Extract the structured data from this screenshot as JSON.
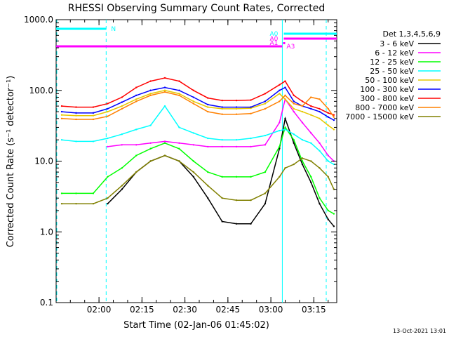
{
  "chart_data": {
    "type": "line",
    "title": "RHESSI Observing Summary Count Rates, Corrected",
    "xlabel": "Start Time (02-Jan-06 01:45:02)",
    "ylabel": "Corrected Count Rate (s⁻¹ detector⁻¹)",
    "yscale": "log",
    "ylim": [
      0.1,
      1000
    ],
    "xlim": [
      "01:45:02",
      "03:23:00"
    ],
    "y_ticks": [
      "0.1",
      "1.0",
      "10.0",
      "100.0",
      "1000.0"
    ],
    "x_ticks": [
      "02:00",
      "02:15",
      "02:30",
      "02:45",
      "03:00",
      "03:15"
    ],
    "legend_title": "Det 1,3,4,5,6,9",
    "legend_position": "right",
    "timestamp": "13-Oct-2021 13:01",
    "markers": {
      "dashed_lines": [
        "01:45:02",
        "02:02:30",
        "03:19:30"
      ],
      "solid_lines": [
        "03:04:00"
      ],
      "flag_bars": [
        {
          "label": "N",
          "color": "#00ffff",
          "start": "01:45:02",
          "end": "02:02:30"
        },
        {
          "label": "A0",
          "color": "#00ffff",
          "start": "03:04:30",
          "end": "03:23:00"
        },
        {
          "label": "A0",
          "color": "#ff00ff",
          "start": "03:04:30",
          "end": "03:23:00"
        },
        {
          "label": "A1",
          "color": "#ff00ff",
          "start": "03:04:30",
          "end": "03:04:30"
        },
        {
          "label": "A3",
          "color": "#ff00ff",
          "start": "01:45:02",
          "end": "03:04:00"
        }
      ]
    },
    "x": [
      "01:47",
      "01:52",
      "01:58",
      "02:03",
      "02:08",
      "02:13",
      "02:18",
      "02:23",
      "02:28",
      "02:33",
      "02:38",
      "02:43",
      "02:48",
      "02:53",
      "02:58",
      "03:03",
      "03:05",
      "03:08",
      "03:11",
      "03:14",
      "03:17",
      "03:20",
      "03:22"
    ],
    "series": [
      {
        "name": "3 - 6 keV",
        "color": "#000000",
        "values": [
          null,
          null,
          null,
          2.5,
          4,
          7,
          10,
          12,
          10,
          6,
          3,
          1.4,
          1.3,
          1.3,
          2.5,
          15,
          40,
          18,
          9,
          5,
          2.5,
          1.5,
          1.2
        ]
      },
      {
        "name": "6 - 12 keV",
        "color": "#ff00ff",
        "values": [
          null,
          null,
          null,
          16,
          17,
          17,
          18,
          19,
          18,
          17,
          16,
          16,
          16,
          16,
          17,
          35,
          75,
          50,
          35,
          25,
          18,
          12,
          10
        ]
      },
      {
        "name": "12 - 25 keV",
        "color": "#00ff00",
        "values": [
          3.5,
          3.5,
          3.5,
          6,
          8,
          12,
          15,
          18,
          15,
          10,
          7,
          6,
          6,
          6,
          7,
          16,
          30,
          20,
          10,
          6,
          3,
          2,
          1.8
        ]
      },
      {
        "name": "25 - 50 keV",
        "color": "#00ffff",
        "values": [
          20,
          19,
          19,
          21,
          24,
          28,
          32,
          60,
          30,
          25,
          21,
          20,
          20,
          21,
          23,
          27,
          28,
          24,
          20,
          18,
          14,
          10,
          9
        ]
      },
      {
        "name": "50 - 100 keV",
        "color": "#e6c800",
        "values": [
          45,
          44,
          44,
          50,
          60,
          75,
          90,
          100,
          90,
          70,
          58,
          55,
          55,
          56,
          65,
          90,
          75,
          55,
          50,
          45,
          40,
          32,
          28
        ]
      },
      {
        "name": "100 - 300 keV",
        "color": "#0000ff",
        "values": [
          50,
          48,
          48,
          55,
          68,
          85,
          100,
          110,
          100,
          80,
          63,
          58,
          58,
          58,
          70,
          100,
          110,
          70,
          60,
          55,
          50,
          42,
          38
        ]
      },
      {
        "name": "300 - 800 keV",
        "color": "#ff0000",
        "values": [
          60,
          58,
          58,
          65,
          80,
          110,
          135,
          150,
          135,
          100,
          78,
          72,
          72,
          73,
          90,
          120,
          135,
          85,
          70,
          60,
          55,
          48,
          45
        ]
      },
      {
        "name": "800 - 7000 keV",
        "color": "#ff8000",
        "values": [
          40,
          39,
          39,
          43,
          55,
          70,
          85,
          95,
          85,
          65,
          50,
          46,
          46,
          47,
          55,
          70,
          85,
          65,
          60,
          80,
          75,
          55,
          42
        ]
      },
      {
        "name": "7000 - 15000 keV",
        "color": "#808000",
        "values": [
          2.5,
          2.5,
          2.5,
          3,
          4.5,
          7,
          10,
          12,
          10,
          7,
          4.5,
          3,
          2.8,
          2.8,
          3.5,
          6,
          8,
          9,
          11,
          10,
          8,
          6,
          4
        ]
      }
    ]
  }
}
